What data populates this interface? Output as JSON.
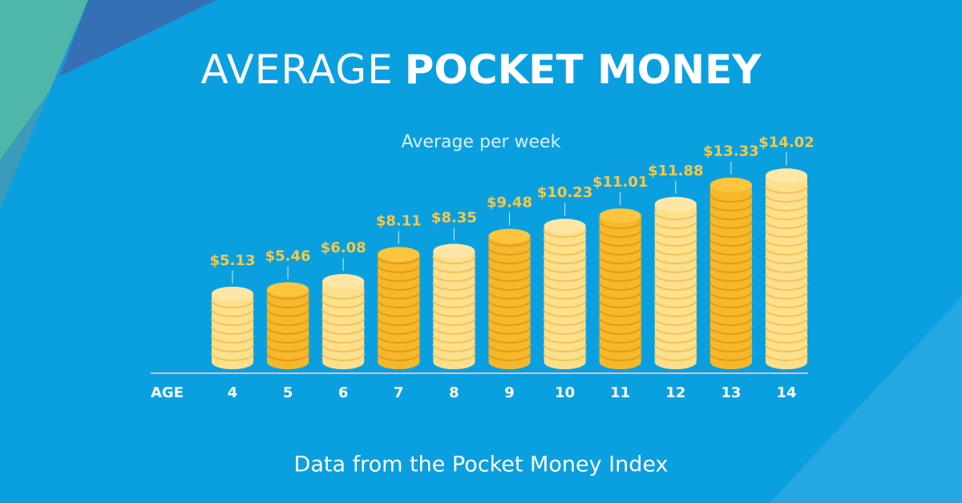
{
  "chart_data": {
    "type": "coin-stack",
    "title": {
      "light": "AVERAGE",
      "bold": "POCKET MONEY"
    },
    "subtitle": "Average per week",
    "x_label": "AGE",
    "source": "Data from the Pocket Money Index",
    "categories": [
      "4",
      "5",
      "6",
      "7",
      "8",
      "9",
      "10",
      "11",
      "12",
      "13",
      "14"
    ],
    "values": [
      5.13,
      5.46,
      6.08,
      8.11,
      8.35,
      9.48,
      10.23,
      11.01,
      11.88,
      13.33,
      14.02
    ],
    "value_labels": [
      "$5.13",
      "$5.46",
      "$6.08",
      "$8.11",
      "$8.35",
      "$9.48",
      "$10.23",
      "$11.01",
      "$11.88",
      "$13.33",
      "$14.02"
    ],
    "colors": [
      "#fde08e",
      "#f6b82b",
      "#fde08e",
      "#f6b82b",
      "#fde08e",
      "#f6b82b",
      "#fde08e",
      "#f6b82b",
      "#fde08e",
      "#f6b82b",
      "#fde08e"
    ]
  }
}
